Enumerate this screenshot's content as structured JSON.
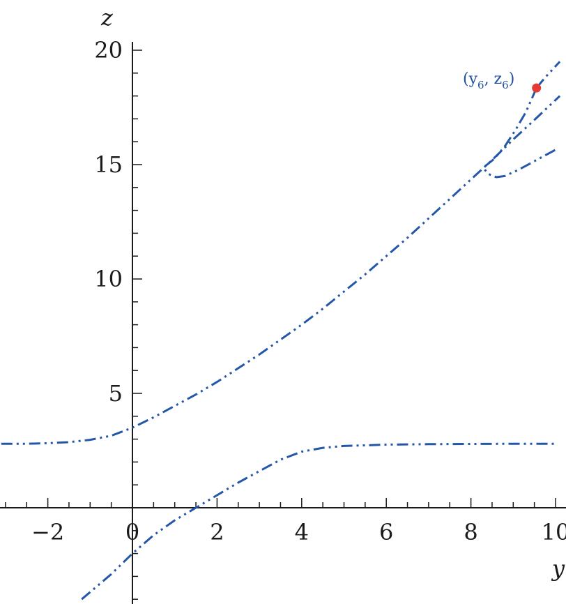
{
  "chart_data": {
    "type": "line",
    "xlabel": "y",
    "ylabel": "z",
    "xlim": [
      -3.1,
      10.1
    ],
    "ylim": [
      -4.0,
      20.2
    ],
    "x_ticks": [
      -2,
      0,
      2,
      4,
      6,
      8,
      10
    ],
    "x_tick_labels": [
      "−2",
      "0",
      "2",
      "4",
      "6",
      "8",
      "10"
    ],
    "y_ticks": [
      5,
      10,
      15,
      20
    ],
    "y_tick_labels": [
      "5",
      "10",
      "15",
      "20"
    ],
    "line_style": "dash-dot",
    "series_color": "#2457a8",
    "series": [
      {
        "points": [
          [
            -3.1,
            2.8
          ],
          [
            -2.5,
            2.8
          ],
          [
            -2.0,
            2.82
          ],
          [
            -1.5,
            2.87
          ],
          [
            -1.0,
            2.97
          ],
          [
            -0.5,
            3.15
          ],
          [
            0.0,
            3.5
          ],
          [
            0.5,
            3.95
          ],
          [
            1.0,
            4.45
          ],
          [
            1.5,
            4.95
          ],
          [
            2.0,
            5.5
          ],
          [
            2.5,
            6.1
          ],
          [
            3.0,
            6.7
          ],
          [
            3.5,
            7.35
          ],
          [
            4.0,
            8.0
          ],
          [
            4.5,
            8.7
          ],
          [
            5.0,
            9.45
          ],
          [
            5.5,
            10.2
          ],
          [
            6.0,
            11.0
          ],
          [
            6.5,
            11.8
          ],
          [
            7.0,
            12.65
          ],
          [
            7.5,
            13.5
          ],
          [
            8.0,
            14.35
          ],
          [
            8.5,
            15.2
          ],
          [
            9.0,
            16.1
          ],
          [
            9.5,
            16.95
          ],
          [
            10.1,
            18.0
          ]
        ]
      },
      {
        "points": [
          [
            -1.2,
            -4.0
          ],
          [
            -0.5,
            -2.9
          ],
          [
            0.0,
            -2.0
          ],
          [
            0.5,
            -1.2
          ],
          [
            1.0,
            -0.55
          ],
          [
            1.5,
            0.0
          ],
          [
            2.0,
            0.55
          ],
          [
            2.5,
            1.1
          ],
          [
            3.0,
            1.6
          ],
          [
            3.5,
            2.1
          ],
          [
            4.0,
            2.45
          ],
          [
            4.5,
            2.62
          ],
          [
            5.0,
            2.7
          ],
          [
            5.5,
            2.73
          ],
          [
            6.0,
            2.76
          ],
          [
            7.0,
            2.78
          ],
          [
            8.0,
            2.79
          ],
          [
            9.0,
            2.8
          ],
          [
            10.0,
            2.8
          ]
        ]
      },
      {
        "points": [
          [
            9.55,
            18.35
          ],
          [
            9.3,
            17.3
          ],
          [
            9.05,
            16.5
          ],
          [
            8.8,
            15.8
          ],
          [
            8.55,
            15.25
          ],
          [
            8.35,
            14.95
          ],
          [
            8.3,
            14.85
          ],
          [
            8.4,
            14.6
          ],
          [
            8.6,
            14.45
          ],
          [
            8.8,
            14.5
          ],
          [
            9.1,
            14.75
          ],
          [
            9.4,
            15.05
          ],
          [
            9.7,
            15.35
          ],
          [
            10.0,
            15.65
          ]
        ]
      },
      {
        "points": [
          [
            9.55,
            18.35
          ],
          [
            9.75,
            18.8
          ],
          [
            10.1,
            19.5
          ]
        ]
      }
    ],
    "marker": {
      "x": 9.55,
      "y": 18.35,
      "color": "#e53935"
    },
    "annotation": {
      "label_main": "(y",
      "sub1": "6",
      "mid": ", z",
      "sub2": "6",
      "close": ")"
    }
  }
}
